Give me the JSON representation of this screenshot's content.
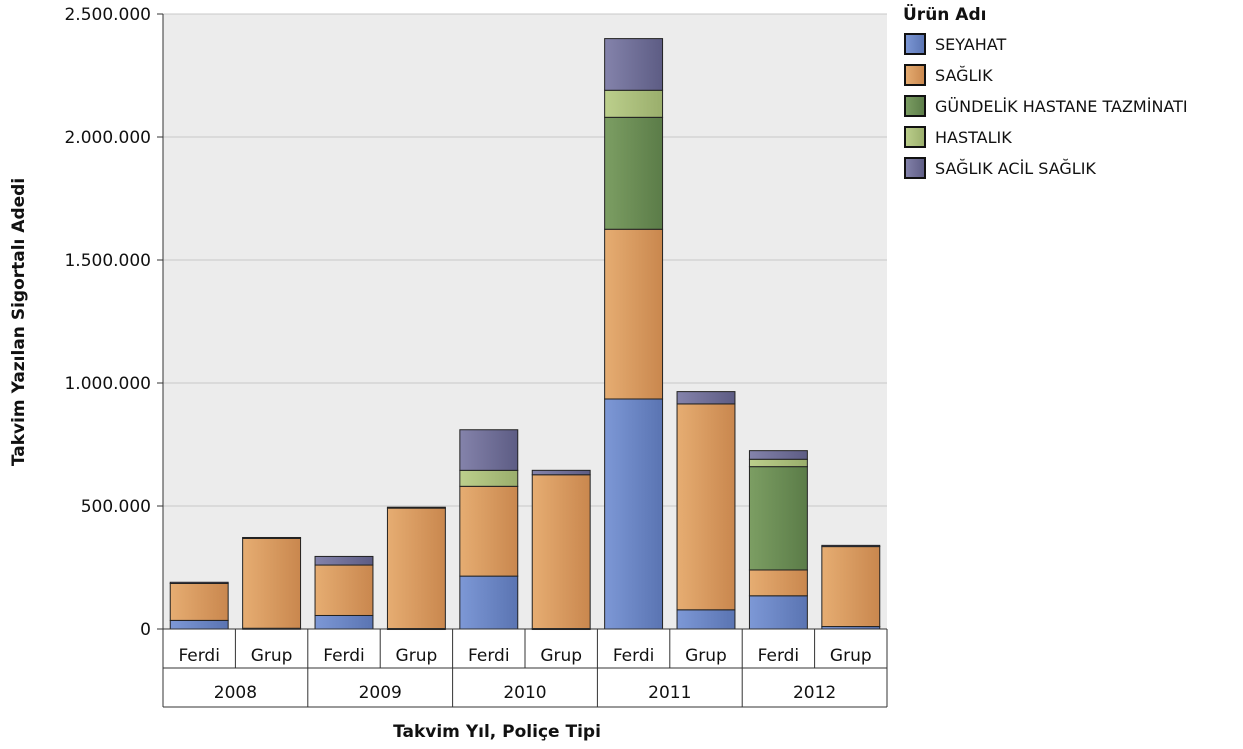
{
  "chart_data": {
    "type": "bar",
    "stacked": true,
    "title": "",
    "xlabel": "Takvim Yıl, Poliçe Tipi",
    "ylabel": "Takvim Yazılan Sigortalı Adedi",
    "ylim": [
      0,
      2500000
    ],
    "yticks": [
      0,
      500000,
      1000000,
      1500000,
      2000000,
      2500000
    ],
    "ytick_labels": [
      "0",
      "500.000",
      "1.000.000",
      "1.500.000",
      "2.000.000",
      "2.500.000"
    ],
    "grid": true,
    "legend": {
      "title": "Ürün Adı",
      "position": "top-right"
    },
    "years": [
      "2008",
      "2009",
      "2010",
      "2011",
      "2012"
    ],
    "categories": [
      "Ferdi",
      "Grup",
      "Ferdi",
      "Grup",
      "Ferdi",
      "Grup",
      "Ferdi",
      "Grup",
      "Ferdi",
      "Grup"
    ],
    "series": [
      {
        "name": "SEYAHAT",
        "color": "#6b86c4",
        "values": [
          35000,
          3000,
          55000,
          2000,
          215000,
          2000,
          935000,
          78000,
          135000,
          10000
        ]
      },
      {
        "name": "SAĞLIK",
        "color": "#d9985f",
        "values": [
          150000,
          367000,
          205000,
          490000,
          365000,
          625000,
          690000,
          837000,
          105000,
          325000
        ]
      },
      {
        "name": "GÜNDELİK HASTANE TAZMİNATI",
        "color": "#6a8c55",
        "values": [
          0,
          0,
          0,
          0,
          0,
          0,
          455000,
          0,
          420000,
          0
        ]
      },
      {
        "name": "HASTALIK",
        "color": "#aabe7c",
        "values": [
          0,
          0,
          0,
          0,
          65000,
          0,
          110000,
          0,
          30000,
          0
        ]
      },
      {
        "name": "SAĞLIK ACİL SAĞLIK",
        "color": "#6f6e96",
        "values": [
          5000,
          2000,
          35000,
          3000,
          165000,
          18000,
          210000,
          50000,
          35000,
          5000
        ]
      }
    ]
  }
}
